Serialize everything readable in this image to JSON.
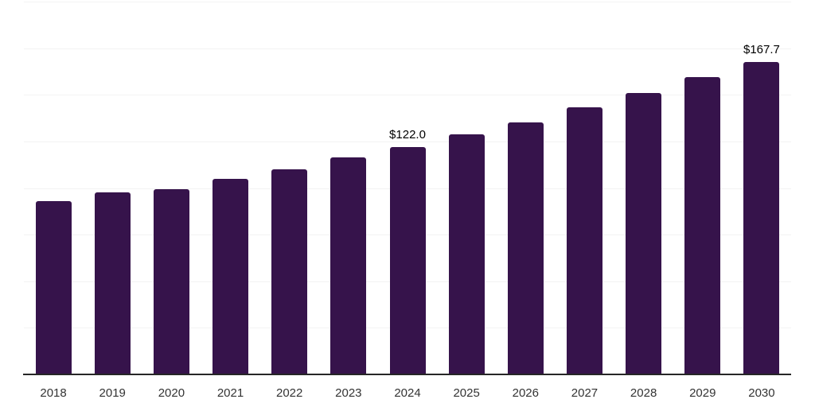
{
  "chart_data": {
    "type": "bar",
    "title": "",
    "xlabel": "",
    "ylabel": "",
    "categories": [
      "2018",
      "2019",
      "2020",
      "2021",
      "2022",
      "2023",
      "2024",
      "2025",
      "2026",
      "2027",
      "2028",
      "2029",
      "2030"
    ],
    "values": [
      93.0,
      97.6,
      99.2,
      104.9,
      110.1,
      116.5,
      122.0,
      128.6,
      135.4,
      143.5,
      151.0,
      159.5,
      167.7
    ],
    "data_labels": [
      {
        "category": "2024",
        "text": "$122.0"
      },
      {
        "category": "2030",
        "text": "$167.7"
      }
    ],
    "ylim": [
      0,
      200
    ],
    "grid": true,
    "grid_step": 25,
    "legend": false,
    "y_tick_labels_visible": false,
    "colors": {
      "bar": "#36134b",
      "gridline": "#f3f3f3",
      "axis_line": "#262626",
      "tick_label": "#333333",
      "data_label": "#000000",
      "background": "#ffffff"
    }
  }
}
